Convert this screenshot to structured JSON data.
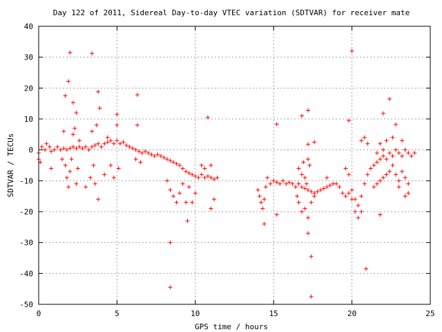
{
  "chart_data": {
    "type": "scatter",
    "title": "Day 122 of 2011, Sidereal Day-to-day VTEC variation (SDTVAR) for receiver mate",
    "xlabel": "GPS time / hours",
    "ylabel": "SDTVAR / TECUs",
    "xlim": [
      0,
      25
    ],
    "ylim": [
      -50,
      40
    ],
    "x_ticks": [
      "0",
      "5",
      "10",
      "15",
      "20",
      "25"
    ],
    "y_ticks": [
      "40",
      "30",
      "20",
      "10",
      "0",
      "-10",
      "-20",
      "-30",
      "-40",
      "-50"
    ],
    "grid": true,
    "marker": "+",
    "marker_color": "#ff0000",
    "series": [
      {
        "points": [
          [
            0.0,
            -1
          ],
          [
            0.0,
            -3
          ],
          [
            0.1,
            -4
          ],
          [
            0.2,
            1
          ],
          [
            0.4,
            0
          ],
          [
            0.5,
            2
          ],
          [
            0.7,
            1
          ],
          [
            0.8,
            -0.5
          ],
          [
            1.0,
            0
          ],
          [
            1.2,
            1
          ],
          [
            1.4,
            0
          ],
          [
            1.6,
            0.5
          ],
          [
            1.8,
            0
          ],
          [
            2.0,
            0.5
          ],
          [
            2.2,
            1
          ],
          [
            2.4,
            0.5
          ],
          [
            2.6,
            1
          ],
          [
            2.8,
            0.5
          ],
          [
            3.0,
            1
          ],
          [
            3.2,
            0
          ],
          [
            3.4,
            1
          ],
          [
            3.6,
            1.5
          ],
          [
            3.8,
            2
          ],
          [
            4.0,
            1
          ],
          [
            4.2,
            2
          ],
          [
            4.4,
            2.5
          ],
          [
            4.6,
            3
          ],
          [
            4.8,
            2
          ],
          [
            5.0,
            3
          ],
          [
            5.2,
            2
          ],
          [
            5.4,
            2.5
          ],
          [
            5.6,
            1.5
          ],
          [
            5.8,
            1
          ],
          [
            6.0,
            0.5
          ],
          [
            6.2,
            0
          ],
          [
            6.4,
            -0.5
          ],
          [
            6.6,
            -1
          ],
          [
            6.8,
            -0.5
          ],
          [
            7.0,
            -1
          ],
          [
            7.2,
            -1.5
          ],
          [
            7.4,
            -2
          ],
          [
            7.6,
            -1.5
          ],
          [
            7.8,
            -2
          ],
          [
            8.0,
            -2.5
          ],
          [
            8.2,
            -3
          ],
          [
            8.4,
            -3.5
          ],
          [
            8.6,
            -4
          ],
          [
            8.8,
            -4.5
          ],
          [
            9.0,
            -5
          ],
          [
            9.2,
            -6
          ],
          [
            9.4,
            -7
          ],
          [
            9.6,
            -7.5
          ],
          [
            9.8,
            -8
          ],
          [
            10.0,
            -8.5
          ],
          [
            10.2,
            -9
          ],
          [
            10.4,
            -8
          ],
          [
            10.6,
            -9
          ],
          [
            10.8,
            -8.5
          ],
          [
            11.0,
            -9
          ],
          [
            11.2,
            -9.5
          ],
          [
            11.4,
            -9
          ],
          [
            1.7,
            -5
          ],
          [
            1.8,
            -9
          ],
          [
            1.9,
            -12
          ],
          [
            2.0,
            -7
          ],
          [
            2.1,
            -3
          ],
          [
            2.2,
            5
          ],
          [
            2.3,
            7
          ],
          [
            2.4,
            -11
          ],
          [
            2.5,
            -6
          ],
          [
            2.6,
            3
          ],
          [
            0.8,
            -6
          ],
          [
            1.5,
            -3
          ],
          [
            1.6,
            6
          ],
          [
            3.0,
            -12
          ],
          [
            3.3,
            -9
          ],
          [
            3.4,
            6
          ],
          [
            3.5,
            -5
          ],
          [
            3.6,
            -11
          ],
          [
            3.7,
            8
          ],
          [
            3.8,
            -16
          ],
          [
            4.2,
            -8
          ],
          [
            4.4,
            4
          ],
          [
            4.6,
            -5
          ],
          [
            4.8,
            -9
          ],
          [
            5.0,
            8
          ],
          [
            5.1,
            -6
          ],
          [
            6.2,
            -3
          ],
          [
            6.3,
            8
          ],
          [
            6.5,
            -4
          ],
          [
            8.2,
            -10
          ],
          [
            8.4,
            -13
          ],
          [
            8.6,
            -15
          ],
          [
            8.8,
            -17
          ],
          [
            9.0,
            -14
          ],
          [
            9.2,
            -11
          ],
          [
            9.4,
            -17
          ],
          [
            9.6,
            -12
          ],
          [
            9.8,
            -17
          ],
          [
            10.0,
            -14
          ],
          [
            10.4,
            -5
          ],
          [
            10.6,
            -6
          ],
          [
            11.0,
            -5
          ],
          [
            14.0,
            -13
          ],
          [
            14.1,
            -15
          ],
          [
            14.2,
            -17
          ],
          [
            14.3,
            -19
          ],
          [
            14.4,
            -16
          ],
          [
            14.5,
            -12
          ],
          [
            14.6,
            -9
          ],
          [
            14.8,
            -11
          ],
          [
            15.0,
            -10
          ],
          [
            15.2,
            -10.5
          ],
          [
            15.4,
            -11
          ],
          [
            15.6,
            -10
          ],
          [
            15.8,
            -11
          ],
          [
            16.0,
            -10.5
          ],
          [
            16.2,
            -11
          ],
          [
            16.4,
            -12
          ],
          [
            16.6,
            -11
          ],
          [
            16.8,
            -12
          ],
          [
            17.0,
            -12.5
          ],
          [
            17.2,
            -13
          ],
          [
            17.4,
            -13.5
          ],
          [
            17.6,
            -14
          ],
          [
            17.8,
            -13.5
          ],
          [
            18.0,
            -13
          ],
          [
            18.2,
            -12.5
          ],
          [
            18.4,
            -12
          ],
          [
            18.6,
            -11.5
          ],
          [
            18.8,
            -11
          ],
          [
            19.0,
            -11
          ],
          [
            19.2,
            -12
          ],
          [
            19.4,
            -14
          ],
          [
            19.6,
            -15
          ],
          [
            19.8,
            -14
          ],
          [
            20.0,
            -13
          ],
          [
            20.2,
            -16
          ],
          [
            20.4,
            -18
          ],
          [
            20.6,
            -15
          ],
          [
            20.8,
            -11
          ],
          [
            21.0,
            -8
          ],
          [
            21.2,
            -6
          ],
          [
            21.4,
            -5
          ],
          [
            21.6,
            -4
          ],
          [
            21.8,
            -3
          ],
          [
            22.0,
            -2
          ],
          [
            22.2,
            -3
          ],
          [
            22.4,
            -1
          ],
          [
            22.6,
            -2
          ],
          [
            22.8,
            0
          ],
          [
            23.0,
            -1
          ],
          [
            23.2,
            -2
          ],
          [
            23.4,
            0
          ],
          [
            23.6,
            -1
          ],
          [
            23.8,
            -2
          ],
          [
            24.0,
            -1
          ],
          [
            21.4,
            -12
          ],
          [
            21.6,
            -11
          ],
          [
            21.8,
            -10
          ],
          [
            22.0,
            -9
          ],
          [
            22.2,
            -8
          ],
          [
            22.4,
            -7
          ],
          [
            22.6,
            -5
          ],
          [
            22.8,
            -8
          ],
          [
            23.0,
            -10
          ],
          [
            23.2,
            -7
          ],
          [
            23.4,
            -9
          ],
          [
            23.6,
            -11
          ],
          [
            16.6,
            -6
          ],
          [
            16.8,
            -8
          ],
          [
            16.9,
            -4
          ],
          [
            17.0,
            -9
          ],
          [
            17.1,
            -11
          ],
          [
            17.2,
            -3
          ],
          [
            17.3,
            -5
          ],
          [
            16.6,
            -17
          ],
          [
            16.8,
            -20
          ],
          [
            17.0,
            -19
          ],
          [
            17.2,
            -22
          ],
          [
            17.4,
            -17
          ],
          [
            16.5,
            -15
          ],
          [
            17.6,
            -15
          ],
          [
            18.4,
            -9
          ],
          [
            19.6,
            -6
          ],
          [
            19.8,
            -8
          ],
          [
            20.0,
            -16
          ],
          [
            20.2,
            -20
          ],
          [
            20.4,
            -22
          ],
          [
            20.6,
            -20
          ],
          [
            20.6,
            3
          ],
          [
            20.8,
            4
          ],
          [
            21.0,
            2
          ],
          [
            21.6,
            -1
          ],
          [
            21.8,
            2
          ],
          [
            22.0,
            0
          ],
          [
            22.2,
            3
          ],
          [
            22.6,
            4
          ],
          [
            23.2,
            3
          ],
          [
            23.4,
            -15
          ],
          [
            23.0,
            -12
          ],
          [
            2.0,
            31.5
          ],
          [
            3.4,
            31.2
          ],
          [
            1.9,
            22.2
          ],
          [
            1.7,
            17.5
          ],
          [
            2.2,
            15.3
          ],
          [
            3.8,
            18.8
          ],
          [
            6.3,
            17.8
          ],
          [
            5.0,
            11.5
          ],
          [
            3.9,
            13.5
          ],
          [
            2.4,
            12
          ],
          [
            10.8,
            10.5
          ],
          [
            8.4,
            -30
          ],
          [
            8.4,
            -44.5
          ],
          [
            9.5,
            -23
          ],
          [
            11.0,
            -19
          ],
          [
            11.2,
            -16
          ],
          [
            20.0,
            32.0
          ],
          [
            19.8,
            9.5
          ],
          [
            16.8,
            11
          ],
          [
            17.2,
            12.8
          ],
          [
            15.2,
            8.3
          ],
          [
            17.6,
            2.5
          ],
          [
            17.2,
            1.8
          ],
          [
            22.0,
            11.8
          ],
          [
            22.4,
            16.5
          ],
          [
            22.8,
            8.2
          ],
          [
            17.2,
            -27
          ],
          [
            17.4,
            -34.5
          ],
          [
            17.4,
            -47.5
          ],
          [
            20.9,
            -38.5
          ],
          [
            14.4,
            -24
          ],
          [
            15.2,
            -21
          ],
          [
            21.8,
            -21
          ],
          [
            23.6,
            -14
          ]
        ]
      }
    ]
  }
}
